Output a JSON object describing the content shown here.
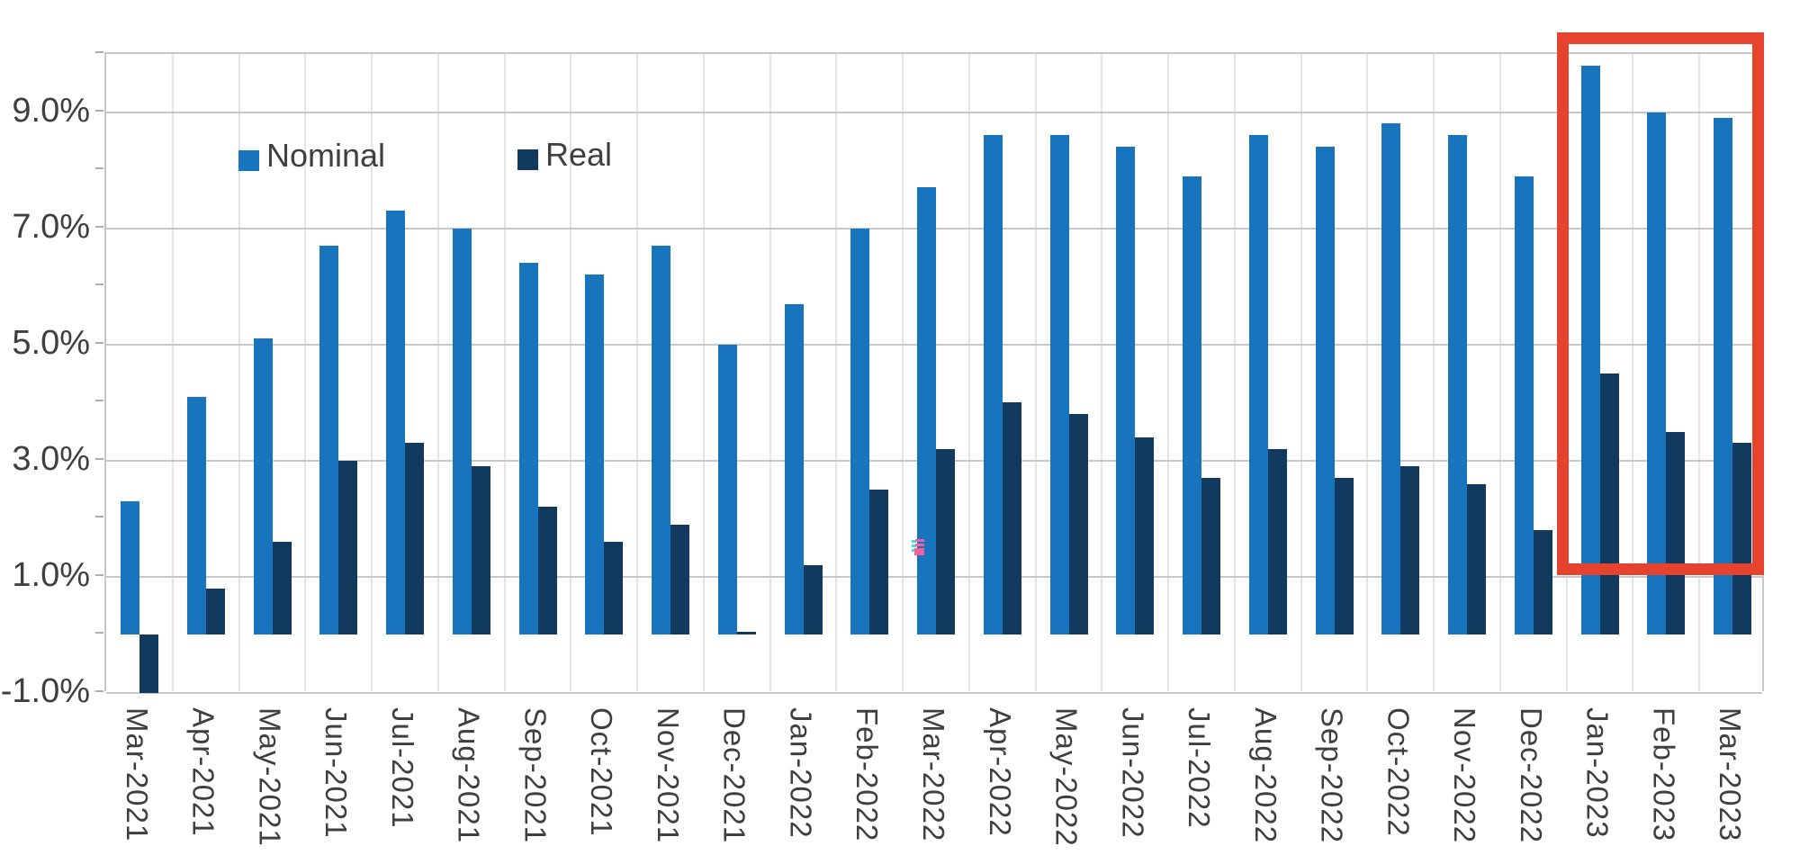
{
  "chart_data": {
    "type": "bar",
    "title": "",
    "xlabel": "",
    "ylabel": "",
    "categories": [
      "Mar-2021",
      "Apr-2021",
      "May-2021",
      "Jun-2021",
      "Jul-2021",
      "Aug-2021",
      "Sep-2021",
      "Oct-2021",
      "Nov-2021",
      "Dec-2021",
      "Jan-2022",
      "Feb-2022",
      "Mar-2022",
      "Apr-2022",
      "May-2022",
      "Jun-2022",
      "Jul-2022",
      "Aug-2022",
      "Sep-2022",
      "Oct-2022",
      "Nov-2022",
      "Dec-2022",
      "Jan-2023",
      "Feb-2023",
      "Mar-2023"
    ],
    "series": [
      {
        "name": "Nominal",
        "color": "#1874bc",
        "values": [
          2.3,
          4.1,
          5.1,
          6.7,
          7.3,
          7.0,
          6.4,
          6.2,
          6.7,
          5.0,
          5.7,
          7.0,
          7.7,
          8.6,
          8.6,
          8.4,
          7.9,
          8.6,
          8.4,
          8.8,
          8.6,
          7.9,
          9.8,
          9.0,
          8.9
        ]
      },
      {
        "name": "Real",
        "color": "#123a5e",
        "values": [
          -1.0,
          0.8,
          1.6,
          3.0,
          3.3,
          2.9,
          2.2,
          1.6,
          1.9,
          0.05,
          1.2,
          2.5,
          3.2,
          4.0,
          3.8,
          3.4,
          2.7,
          3.2,
          2.7,
          2.9,
          2.6,
          1.8,
          4.5,
          3.5,
          3.3
        ]
      }
    ],
    "ylim": [
      -1,
      10
    ],
    "y_ticks": [
      {
        "value": 9,
        "label": "9.0%"
      },
      {
        "value": 7,
        "label": "7.0%"
      },
      {
        "value": 5,
        "label": "5.0%"
      },
      {
        "value": 3,
        "label": "3.0%"
      },
      {
        "value": 1,
        "label": "1.0%"
      },
      {
        "value": -1,
        "label": "-1.0%"
      }
    ],
    "grid": "horizontal gridlines at labeled ticks, faint vertical separators between categories, gray plot border",
    "legend_position": "top-left inside plot area",
    "highlight": {
      "type": "red-rectangle",
      "categories": [
        "Jan-2023",
        "Feb-2023",
        "Mar-2023"
      ],
      "color": "#e5432d"
    }
  },
  "legend": {
    "nominal_label": "Nominal",
    "real_label": "Real"
  },
  "colors": {
    "nominal_bar": "#1874bc",
    "real_bar": "#123a5e",
    "highlight_box": "#e5432d",
    "gridline": "#c8c8c8",
    "category_separator": "#e5e5e5",
    "axis_text": "#3f3f3f",
    "background": "#ffffff",
    "artifact_pink": "#f45f9d",
    "artifact_cyan": "#3fe0e0"
  }
}
